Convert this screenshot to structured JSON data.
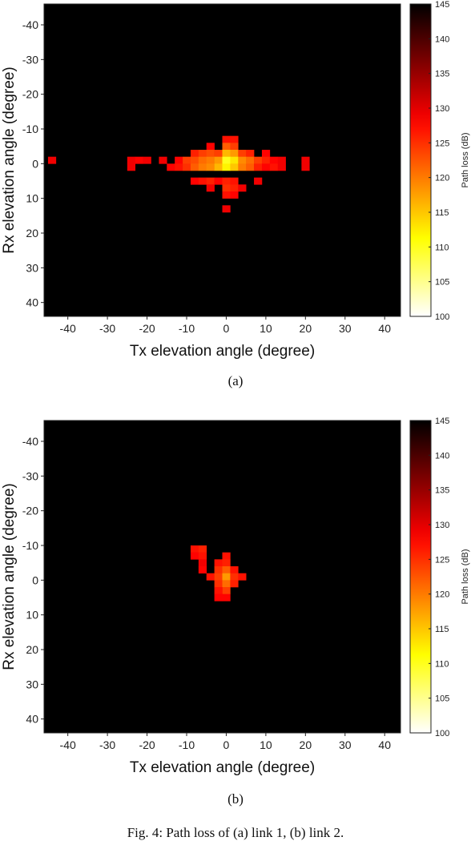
{
  "caption": "Fig. 4: Path loss of (a) link 1, (b) link 2.",
  "chart_data": [
    {
      "type": "heatmap",
      "sublabel": "(a)",
      "xlabel": "Tx elevation angle (degree)",
      "ylabel": "Rx elevation angle (degree)",
      "colorbar_label": "Path loss (dB)",
      "xlim": [
        -46,
        44
      ],
      "ylim": [
        -46,
        44
      ],
      "y_reversed": true,
      "xticks": [
        -40,
        -30,
        -20,
        -10,
        0,
        10,
        20,
        30,
        40
      ],
      "yticks": [
        -40,
        -30,
        -20,
        -10,
        0,
        10,
        20,
        30,
        40
      ],
      "clim": [
        100,
        145
      ],
      "cbticks": [
        100,
        105,
        110,
        115,
        120,
        125,
        130,
        135,
        140,
        145
      ],
      "colormap": "hot (reversed)",
      "background_color": "#000000",
      "cell_size_deg": 2,
      "cells": [
        {
          "x": 0,
          "y": -7,
          "v": 127
        },
        {
          "x": 2,
          "y": -7,
          "v": 127
        },
        {
          "x": -4,
          "y": -5,
          "v": 128
        },
        {
          "x": 0,
          "y": -5,
          "v": 122
        },
        {
          "x": 2,
          "y": -5,
          "v": 124
        },
        {
          "x": -8,
          "y": -3,
          "v": 126
        },
        {
          "x": -6,
          "y": -3,
          "v": 124
        },
        {
          "x": -4,
          "y": -3,
          "v": 123
        },
        {
          "x": -2,
          "y": -3,
          "v": 124
        },
        {
          "x": 0,
          "y": -3,
          "v": 116
        },
        {
          "x": 2,
          "y": -3,
          "v": 118
        },
        {
          "x": 4,
          "y": -3,
          "v": 124
        },
        {
          "x": 6,
          "y": -3,
          "v": 126
        },
        {
          "x": 10,
          "y": -3,
          "v": 128
        },
        {
          "x": -44,
          "y": -1,
          "v": 129
        },
        {
          "x": -24,
          "y": -1,
          "v": 129
        },
        {
          "x": -22,
          "y": -1,
          "v": 128
        },
        {
          "x": -20,
          "y": -1,
          "v": 129
        },
        {
          "x": -16,
          "y": -1,
          "v": 129
        },
        {
          "x": -12,
          "y": -1,
          "v": 128
        },
        {
          "x": -10,
          "y": -1,
          "v": 124
        },
        {
          "x": -8,
          "y": -1,
          "v": 123
        },
        {
          "x": -6,
          "y": -1,
          "v": 121
        },
        {
          "x": -4,
          "y": -1,
          "v": 120
        },
        {
          "x": -2,
          "y": -1,
          "v": 118
        },
        {
          "x": 0,
          "y": -1,
          "v": 110
        },
        {
          "x": 2,
          "y": -1,
          "v": 113
        },
        {
          "x": 4,
          "y": -1,
          "v": 119
        },
        {
          "x": 6,
          "y": -1,
          "v": 121
        },
        {
          "x": 8,
          "y": -1,
          "v": 124
        },
        {
          "x": 10,
          "y": -1,
          "v": 126
        },
        {
          "x": 12,
          "y": -1,
          "v": 128
        },
        {
          "x": 14,
          "y": -1,
          "v": 129
        },
        {
          "x": 20,
          "y": -1,
          "v": 129
        },
        {
          "x": -24,
          "y": 1,
          "v": 129
        },
        {
          "x": -14,
          "y": 1,
          "v": 128
        },
        {
          "x": -12,
          "y": 1,
          "v": 127
        },
        {
          "x": -10,
          "y": 1,
          "v": 125
        },
        {
          "x": -8,
          "y": 1,
          "v": 122
        },
        {
          "x": -6,
          "y": 1,
          "v": 120
        },
        {
          "x": -4,
          "y": 1,
          "v": 119
        },
        {
          "x": -2,
          "y": 1,
          "v": 116
        },
        {
          "x": 0,
          "y": 1,
          "v": 112
        },
        {
          "x": 2,
          "y": 1,
          "v": 115
        },
        {
          "x": 4,
          "y": 1,
          "v": 120
        },
        {
          "x": 6,
          "y": 1,
          "v": 122
        },
        {
          "x": 8,
          "y": 1,
          "v": 126
        },
        {
          "x": 10,
          "y": 1,
          "v": 128
        },
        {
          "x": 12,
          "y": 1,
          "v": 127
        },
        {
          "x": 14,
          "y": 1,
          "v": 129
        },
        {
          "x": 20,
          "y": 1,
          "v": 129
        },
        {
          "x": -8,
          "y": 5,
          "v": 128
        },
        {
          "x": -6,
          "y": 5,
          "v": 127
        },
        {
          "x": -4,
          "y": 5,
          "v": 126
        },
        {
          "x": -2,
          "y": 5,
          "v": 128
        },
        {
          "x": 0,
          "y": 5,
          "v": 126
        },
        {
          "x": 2,
          "y": 5,
          "v": 127
        },
        {
          "x": 8,
          "y": 5,
          "v": 129
        },
        {
          "x": 0,
          "y": 7,
          "v": 125
        },
        {
          "x": 2,
          "y": 7,
          "v": 126
        },
        {
          "x": -4,
          "y": 7,
          "v": 129
        },
        {
          "x": 4,
          "y": 7,
          "v": 129
        },
        {
          "x": 0,
          "y": 9,
          "v": 127
        },
        {
          "x": 2,
          "y": 9,
          "v": 128
        },
        {
          "x": 0,
          "y": 13,
          "v": 129
        }
      ]
    },
    {
      "type": "heatmap",
      "sublabel": "(b)",
      "xlabel": "Tx elevation angle (degree)",
      "ylabel": "Rx elevation angle (degree)",
      "colorbar_label": "Path loss (dB)",
      "xlim": [
        -46,
        44
      ],
      "ylim": [
        -46,
        44
      ],
      "y_reversed": true,
      "xticks": [
        -40,
        -30,
        -20,
        -10,
        0,
        10,
        20,
        30,
        40
      ],
      "yticks": [
        -40,
        -30,
        -20,
        -10,
        0,
        10,
        20,
        30,
        40
      ],
      "clim": [
        100,
        145
      ],
      "cbticks": [
        100,
        105,
        110,
        115,
        120,
        125,
        130,
        135,
        140,
        145
      ],
      "colormap": "hot (reversed)",
      "background_color": "#000000",
      "cell_size_deg": 2,
      "cells": [
        {
          "x": -8,
          "y": -9,
          "v": 127
        },
        {
          "x": -6,
          "y": -9,
          "v": 126
        },
        {
          "x": -8,
          "y": -7,
          "v": 128
        },
        {
          "x": -6,
          "y": -7,
          "v": 127
        },
        {
          "x": 0,
          "y": -7,
          "v": 127
        },
        {
          "x": -2,
          "y": -5,
          "v": 127
        },
        {
          "x": 0,
          "y": -5,
          "v": 126
        },
        {
          "x": -6,
          "y": -5,
          "v": 129
        },
        {
          "x": -2,
          "y": -3,
          "v": 125
        },
        {
          "x": 0,
          "y": -3,
          "v": 122
        },
        {
          "x": 2,
          "y": -3,
          "v": 127
        },
        {
          "x": -6,
          "y": -3,
          "v": 128
        },
        {
          "x": -4,
          "y": -1,
          "v": 127
        },
        {
          "x": -2,
          "y": -1,
          "v": 124
        },
        {
          "x": 0,
          "y": -1,
          "v": 118
        },
        {
          "x": 2,
          "y": -1,
          "v": 125
        },
        {
          "x": 4,
          "y": -1,
          "v": 127
        },
        {
          "x": -2,
          "y": 1,
          "v": 125
        },
        {
          "x": 0,
          "y": 1,
          "v": 121
        },
        {
          "x": 2,
          "y": 1,
          "v": 126
        },
        {
          "x": 0,
          "y": 3,
          "v": 124
        },
        {
          "x": -2,
          "y": 3,
          "v": 127
        },
        {
          "x": 0,
          "y": 5,
          "v": 128
        },
        {
          "x": -2,
          "y": 5,
          "v": 128
        }
      ]
    }
  ]
}
